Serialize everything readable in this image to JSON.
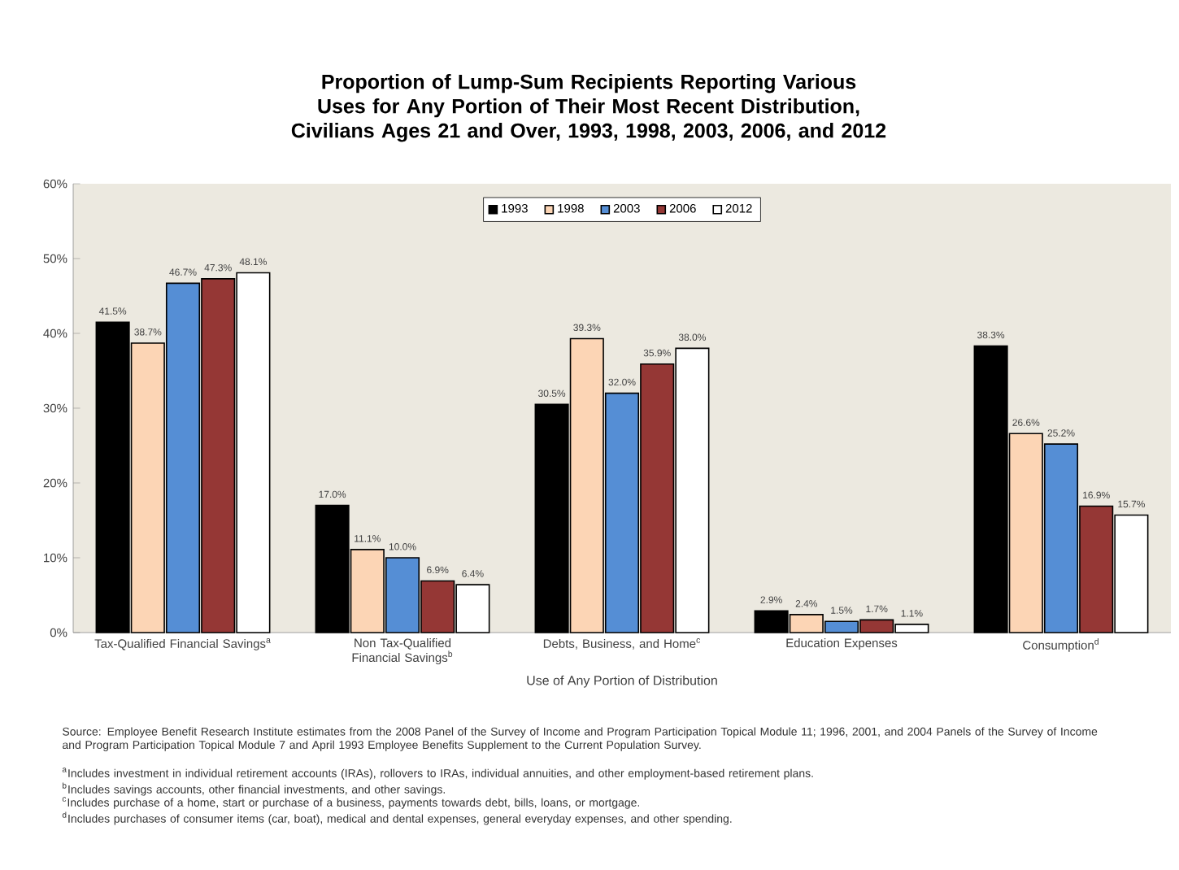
{
  "chart_data": {
    "type": "bar",
    "title": "Proportion of Lump-Sum Recipients Reporting Various Uses for Any Portion of Their Most Recent Distribution, Civilians Ages 21 and Over, 1993, 1998, 2003, 2006, and 2012",
    "xlabel": "Use of Any Portion of Distribution",
    "categories": [
      "Tax-Qualified Financial Savings$^{a}$",
      "Non Tax-Qualified Financial Savings$^{b}$",
      "Debts, Business, and Home$^{c}$",
      "Education Expenses",
      "Consumption$^{d}$"
    ],
    "series": [
      {
        "name": "1993",
        "color": "#000000",
        "values": [
          41.5,
          17.0,
          30.5,
          2.9,
          38.3
        ],
        "value_labels": [
          "41.5%",
          "17.0%",
          "30.5%",
          "2.9%",
          "38.3%"
        ]
      },
      {
        "name": "1998",
        "color": "#fcd5b5",
        "values": [
          38.7,
          11.1,
          39.3,
          2.4,
          26.6
        ],
        "value_labels": [
          "38.7%",
          "11.1%",
          "39.3%",
          "2.4%",
          "26.6%"
        ]
      },
      {
        "name": "2003",
        "color": "#558ed5",
        "values": [
          46.7,
          10.0,
          32.0,
          1.5,
          25.2
        ],
        "value_labels": [
          "46.7%",
          "10.0%",
          "32.0%",
          "1.5%",
          "25.2%"
        ]
      },
      {
        "name": "2006",
        "color": "#953735",
        "values": [
          47.3,
          6.9,
          35.9,
          1.7,
          16.9
        ],
        "value_labels": [
          "47.3%",
          "6.9%",
          "35.9%",
          "1.7%",
          "16.9%"
        ]
      },
      {
        "name": "2012",
        "color": "#ffffff",
        "values": [
          48.1,
          6.4,
          38.0,
          1.1,
          15.7
        ],
        "value_labels": [
          "48.1%",
          "6.4%",
          "38.0%",
          "1.1%",
          "15.7%"
        ]
      }
    ],
    "ylim": [
      0,
      60
    ],
    "yticks": [
      {
        "value": 0,
        "label": "0%"
      },
      {
        "value": 10,
        "label": "10%"
      },
      {
        "value": 20,
        "label": "20%"
      },
      {
        "value": 30,
        "label": "30%"
      },
      {
        "value": 40,
        "label": "40%"
      },
      {
        "value": 50,
        "label": "50%"
      },
      {
        "value": 60,
        "label": "60%"
      }
    ],
    "legend": "top",
    "annotations": [
      "Source: Employee Benefit Research Institute estimates from the 2008 Panel of the Survey of Income and Program Participation Topical Module 11; 1996, 2001, and 2004 Panels of the Survey of Income and Program Participation Topical Module 7 and April 1993 Employee Benefits Supplement to the Current Population Survey.",
      "$^{a}$Includes investment in individual retirement accounts (IRAs), rollovers to IRAs, individual annuities, and other employment-based retirement plans.",
      "$^{b}$Includes savings accounts, other financial investments, and other savings.",
      "$^{c}$Includes purchase of a home, start or purchase of a business, payments towards debt, bills, loans, or mortgage.",
      "$^{d}$Includes purchases of consumer items (car, boat), medical and dental expenses, general everyday expenses, and other spending."
    ]
  }
}
